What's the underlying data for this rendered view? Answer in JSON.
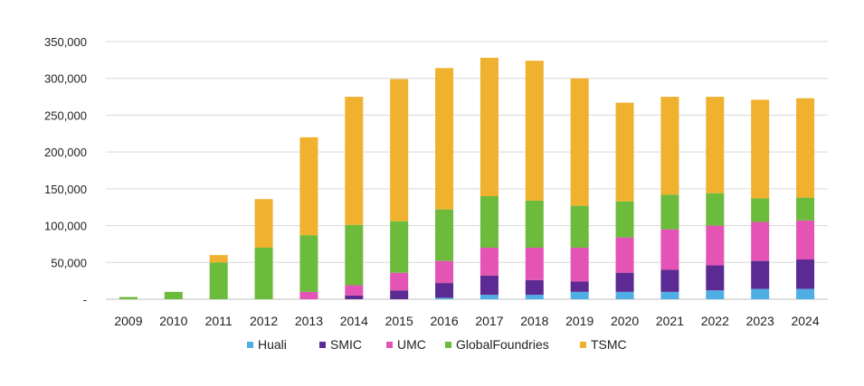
{
  "chart_data": {
    "type": "bar",
    "stacked": true,
    "categories": [
      "2009",
      "2010",
      "2011",
      "2012",
      "2013",
      "2014",
      "2015",
      "2016",
      "2017",
      "2018",
      "2019",
      "2020",
      "2021",
      "2022",
      "2023",
      "2024"
    ],
    "y_tick_labels": [
      "-",
      "50,000",
      "100,000",
      "150,000",
      "200,000",
      "250,000",
      "300,000",
      "350,000"
    ],
    "y_ticks": [
      0,
      50000,
      100000,
      150000,
      200000,
      250000,
      300000,
      350000
    ],
    "ylim": [
      0,
      350000
    ],
    "grid": true,
    "legend_position": "bottom",
    "series": [
      {
        "name": "Huali",
        "color": "#4faee3",
        "values": [
          0,
          0,
          0,
          0,
          0,
          0,
          0,
          2000,
          6000,
          6000,
          10000,
          10000,
          10000,
          12000,
          14000,
          14000
        ]
      },
      {
        "name": "SMIC",
        "color": "#5b2a92",
        "values": [
          0,
          0,
          0,
          0,
          0,
          5000,
          12000,
          20000,
          26000,
          20000,
          14000,
          26000,
          30000,
          34000,
          38000,
          40000
        ]
      },
      {
        "name": "UMC",
        "color": "#e454b4",
        "values": [
          0,
          0,
          0,
          0,
          10000,
          14000,
          24000,
          30000,
          38000,
          44000,
          46000,
          48000,
          55000,
          54000,
          53000,
          53000
        ]
      },
      {
        "name": "GlobalFoundries",
        "color": "#6cbb3c",
        "values": [
          3000,
          10000,
          50000,
          70000,
          77000,
          82000,
          70000,
          70000,
          70000,
          64000,
          57000,
          49000,
          47000,
          44000,
          32000,
          31000
        ]
      },
      {
        "name": "TSMC",
        "color": "#f0b12f",
        "values": [
          0,
          0,
          10000,
          66000,
          133000,
          174000,
          193000,
          192000,
          188000,
          190000,
          173000,
          134000,
          133000,
          131000,
          134000,
          135000
        ]
      }
    ]
  }
}
